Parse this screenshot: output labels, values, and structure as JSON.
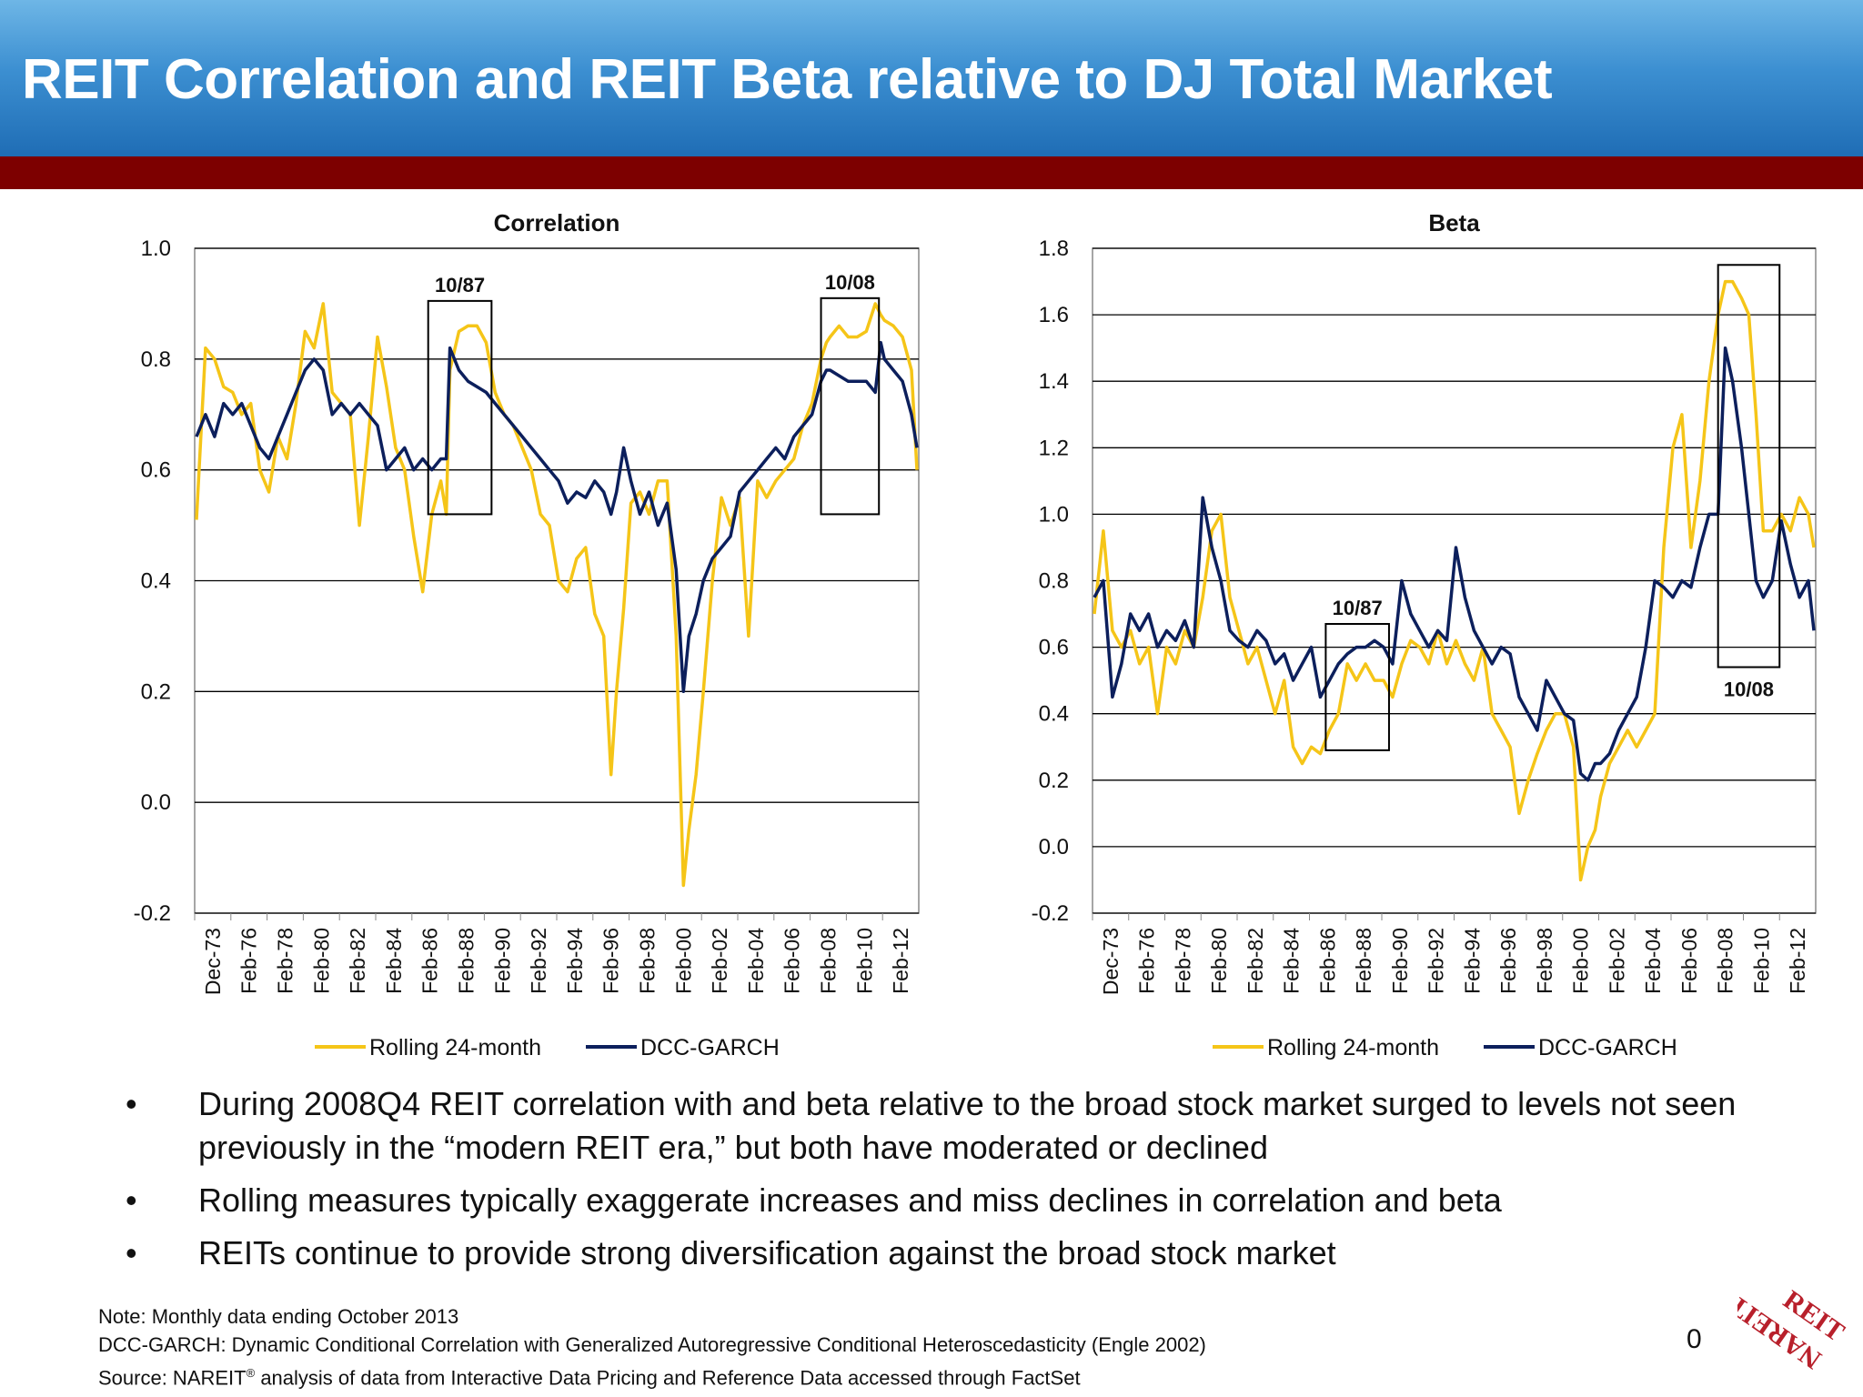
{
  "header": {
    "title": "REIT Correlation and REIT Beta relative to DJ Total Market"
  },
  "chart_data": [
    {
      "type": "line",
      "title": "Correlation",
      "ylim": [
        -0.2,
        1.0
      ],
      "yticks": [
        "1.0",
        "0.8",
        "0.6",
        "0.4",
        "0.2",
        "0.0",
        "-0.2"
      ],
      "x_tick_labels": [
        "Dec-73",
        "Feb-76",
        "Feb-78",
        "Feb-80",
        "Feb-82",
        "Feb-84",
        "Feb-86",
        "Feb-88",
        "Feb-90",
        "Feb-92",
        "Feb-94",
        "Feb-96",
        "Feb-98",
        "Feb-00",
        "Feb-02",
        "Feb-04",
        "Feb-06",
        "Feb-08",
        "Feb-10",
        "Feb-12"
      ],
      "grid": true,
      "legend_placement": "bottom",
      "series": [
        {
          "name": "Rolling 24-month",
          "color": "#f5c518",
          "x": [
            1974.0,
            1974.5,
            1975.0,
            1975.5,
            1976.0,
            1976.5,
            1977.0,
            1977.5,
            1978.0,
            1978.5,
            1979.0,
            1979.5,
            1980.0,
            1980.5,
            1981.0,
            1981.5,
            1982.0,
            1982.5,
            1983.0,
            1983.5,
            1984.0,
            1984.5,
            1985.0,
            1985.5,
            1986.0,
            1986.5,
            1987.0,
            1987.5,
            1987.8,
            1988.0,
            1988.5,
            1989.0,
            1989.5,
            1990.0,
            1990.5,
            1991.0,
            1991.5,
            1992.0,
            1992.5,
            1993.0,
            1993.5,
            1994.0,
            1994.5,
            1995.0,
            1995.5,
            1996.0,
            1996.5,
            1996.9,
            1997.2,
            1997.6,
            1998.0,
            1998.5,
            1999.0,
            1999.5,
            2000.0,
            2000.5,
            2000.9,
            2001.2,
            2001.6,
            2002.0,
            2002.5,
            2003.0,
            2003.5,
            2004.0,
            2004.5,
            2005.0,
            2005.5,
            2006.0,
            2006.5,
            2007.0,
            2007.5,
            2008.0,
            2008.5,
            2008.8,
            2009.0,
            2009.5,
            2010.0,
            2010.5,
            2011.0,
            2011.5,
            2011.8,
            2012.0,
            2012.5,
            2013.0,
            2013.5,
            2013.8
          ],
          "y": [
            0.51,
            0.82,
            0.8,
            0.75,
            0.74,
            0.7,
            0.72,
            0.6,
            0.56,
            0.66,
            0.62,
            0.72,
            0.85,
            0.82,
            0.9,
            0.74,
            0.72,
            0.7,
            0.5,
            0.66,
            0.84,
            0.75,
            0.64,
            0.6,
            0.48,
            0.38,
            0.52,
            0.58,
            0.52,
            0.78,
            0.85,
            0.86,
            0.86,
            0.83,
            0.74,
            0.7,
            0.68,
            0.64,
            0.6,
            0.52,
            0.5,
            0.4,
            0.38,
            0.44,
            0.46,
            0.34,
            0.3,
            0.05,
            0.2,
            0.35,
            0.54,
            0.56,
            0.52,
            0.58,
            0.58,
            0.3,
            -0.15,
            -0.05,
            0.05,
            0.2,
            0.4,
            0.55,
            0.5,
            0.55,
            0.3,
            0.58,
            0.55,
            0.58,
            0.6,
            0.62,
            0.68,
            0.72,
            0.8,
            0.83,
            0.84,
            0.86,
            0.84,
            0.84,
            0.85,
            0.9,
            0.88,
            0.87,
            0.86,
            0.84,
            0.78,
            0.6
          ]
        },
        {
          "name": "DCC-GARCH",
          "color": "#0c1f5c",
          "x": [
            1974.0,
            1974.5,
            1975.0,
            1975.5,
            1976.0,
            1976.5,
            1977.0,
            1977.5,
            1978.0,
            1978.5,
            1979.0,
            1979.5,
            1980.0,
            1980.5,
            1981.0,
            1981.5,
            1982.0,
            1982.5,
            1983.0,
            1983.5,
            1984.0,
            1984.5,
            1985.0,
            1985.5,
            1986.0,
            1986.5,
            1987.0,
            1987.5,
            1987.8,
            1988.0,
            1988.5,
            1989.0,
            1989.5,
            1990.0,
            1990.5,
            1991.0,
            1991.5,
            1992.0,
            1992.5,
            1993.0,
            1993.5,
            1994.0,
            1994.5,
            1995.0,
            1995.5,
            1996.0,
            1996.5,
            1996.9,
            1997.2,
            1997.6,
            1998.0,
            1998.5,
            1999.0,
            1999.5,
            2000.0,
            2000.5,
            2000.9,
            2001.2,
            2001.6,
            2002.0,
            2002.5,
            2003.0,
            2003.5,
            2004.0,
            2004.5,
            2005.0,
            2005.5,
            2006.0,
            2006.5,
            2007.0,
            2007.5,
            2008.0,
            2008.5,
            2008.8,
            2009.0,
            2009.5,
            2010.0,
            2010.5,
            2011.0,
            2011.5,
            2011.8,
            2012.0,
            2012.5,
            2013.0,
            2013.5,
            2013.8
          ],
          "y": [
            0.66,
            0.7,
            0.66,
            0.72,
            0.7,
            0.72,
            0.68,
            0.64,
            0.62,
            0.66,
            0.7,
            0.74,
            0.78,
            0.8,
            0.78,
            0.7,
            0.72,
            0.7,
            0.72,
            0.7,
            0.68,
            0.6,
            0.62,
            0.64,
            0.6,
            0.62,
            0.6,
            0.62,
            0.62,
            0.82,
            0.78,
            0.76,
            0.75,
            0.74,
            0.72,
            0.7,
            0.68,
            0.66,
            0.64,
            0.62,
            0.6,
            0.58,
            0.54,
            0.56,
            0.55,
            0.58,
            0.56,
            0.52,
            0.56,
            0.64,
            0.58,
            0.52,
            0.56,
            0.5,
            0.54,
            0.42,
            0.2,
            0.3,
            0.34,
            0.4,
            0.44,
            0.46,
            0.48,
            0.56,
            0.58,
            0.6,
            0.62,
            0.64,
            0.62,
            0.66,
            0.68,
            0.7,
            0.76,
            0.78,
            0.78,
            0.77,
            0.76,
            0.76,
            0.76,
            0.74,
            0.83,
            0.8,
            0.78,
            0.76,
            0.7,
            0.64
          ]
        }
      ],
      "annotations": [
        {
          "text": "10/87",
          "x0": 1986.8,
          "x1": 1990.3,
          "y0": 0.52,
          "y1": 0.905
        },
        {
          "text": "10/08",
          "x0": 2008.5,
          "x1": 2011.7,
          "y0": 0.52,
          "y1": 0.91
        }
      ]
    },
    {
      "type": "line",
      "title": "Beta",
      "ylim": [
        -0.2,
        1.8
      ],
      "yticks": [
        "1.8",
        "1.6",
        "1.4",
        "1.2",
        "1.0",
        "0.8",
        "0.6",
        "0.4",
        "0.2",
        "0.0",
        "-0.2"
      ],
      "x_tick_labels": [
        "Dec-73",
        "Feb-76",
        "Feb-78",
        "Feb-80",
        "Feb-82",
        "Feb-84",
        "Feb-86",
        "Feb-88",
        "Feb-90",
        "Feb-92",
        "Feb-94",
        "Feb-96",
        "Feb-98",
        "Feb-00",
        "Feb-02",
        "Feb-04",
        "Feb-06",
        "Feb-08",
        "Feb-10",
        "Feb-12"
      ],
      "grid": true,
      "legend_placement": "bottom",
      "series": [
        {
          "name": "Rolling 24-month",
          "color": "#f5c518",
          "x": [
            1974.0,
            1974.5,
            1975.0,
            1975.5,
            1976.0,
            1976.5,
            1977.0,
            1977.5,
            1978.0,
            1978.5,
            1979.0,
            1979.5,
            1980.0,
            1980.5,
            1981.0,
            1981.5,
            1982.0,
            1982.5,
            1983.0,
            1983.5,
            1984.0,
            1984.5,
            1985.0,
            1985.5,
            1986.0,
            1986.5,
            1987.0,
            1987.5,
            1988.0,
            1988.5,
            1989.0,
            1989.5,
            1990.0,
            1990.5,
            1991.0,
            1991.5,
            1992.0,
            1992.5,
            1993.0,
            1993.5,
            1994.0,
            1994.5,
            1995.0,
            1995.5,
            1996.0,
            1996.5,
            1997.0,
            1997.5,
            1998.0,
            1998.5,
            1999.0,
            1999.5,
            2000.0,
            2000.5,
            2000.9,
            2001.3,
            2001.7,
            2002.0,
            2002.5,
            2003.0,
            2003.5,
            2004.0,
            2004.5,
            2005.0,
            2005.5,
            2006.0,
            2006.5,
            2007.0,
            2007.5,
            2008.0,
            2008.5,
            2008.9,
            2009.3,
            2009.8,
            2010.2,
            2010.6,
            2011.0,
            2011.5,
            2012.0,
            2012.5,
            2013.0,
            2013.5,
            2013.8
          ],
          "y": [
            0.7,
            0.95,
            0.65,
            0.6,
            0.65,
            0.55,
            0.6,
            0.4,
            0.6,
            0.55,
            0.65,
            0.6,
            0.75,
            0.95,
            1.0,
            0.75,
            0.65,
            0.55,
            0.6,
            0.5,
            0.4,
            0.5,
            0.3,
            0.25,
            0.3,
            0.28,
            0.35,
            0.4,
            0.55,
            0.5,
            0.55,
            0.5,
            0.5,
            0.45,
            0.55,
            0.62,
            0.6,
            0.55,
            0.65,
            0.55,
            0.62,
            0.55,
            0.5,
            0.6,
            0.4,
            0.35,
            0.3,
            0.1,
            0.2,
            0.28,
            0.35,
            0.4,
            0.4,
            0.3,
            -0.1,
            0.0,
            0.05,
            0.15,
            0.25,
            0.3,
            0.35,
            0.3,
            0.35,
            0.4,
            0.9,
            1.2,
            1.3,
            0.9,
            1.1,
            1.4,
            1.6,
            1.7,
            1.7,
            1.65,
            1.6,
            1.3,
            0.95,
            0.95,
            1.0,
            0.95,
            1.05,
            1.0,
            0.9
          ]
        },
        {
          "name": "DCC-GARCH",
          "color": "#0c1f5c",
          "x": [
            1974.0,
            1974.5,
            1975.0,
            1975.5,
            1976.0,
            1976.5,
            1977.0,
            1977.5,
            1978.0,
            1978.5,
            1979.0,
            1979.5,
            1980.0,
            1980.5,
            1981.0,
            1981.5,
            1982.0,
            1982.5,
            1983.0,
            1983.5,
            1984.0,
            1984.5,
            1985.0,
            1985.5,
            1986.0,
            1986.5,
            1987.0,
            1987.5,
            1988.0,
            1988.5,
            1989.0,
            1989.5,
            1990.0,
            1990.5,
            1991.0,
            1991.5,
            1992.0,
            1992.5,
            1993.0,
            1993.5,
            1994.0,
            1994.5,
            1995.0,
            1995.5,
            1996.0,
            1996.5,
            1997.0,
            1997.5,
            1998.0,
            1998.5,
            1999.0,
            1999.5,
            2000.0,
            2000.5,
            2000.9,
            2001.3,
            2001.7,
            2002.0,
            2002.5,
            2003.0,
            2003.5,
            2004.0,
            2004.5,
            2005.0,
            2005.5,
            2006.0,
            2006.5,
            2007.0,
            2007.5,
            2008.0,
            2008.5,
            2008.9,
            2009.3,
            2009.8,
            2010.2,
            2010.6,
            2011.0,
            2011.5,
            2012.0,
            2012.5,
            2013.0,
            2013.5,
            2013.8
          ],
          "y": [
            0.75,
            0.8,
            0.45,
            0.55,
            0.7,
            0.65,
            0.7,
            0.6,
            0.65,
            0.62,
            0.68,
            0.6,
            1.05,
            0.9,
            0.8,
            0.65,
            0.62,
            0.6,
            0.65,
            0.62,
            0.55,
            0.58,
            0.5,
            0.55,
            0.6,
            0.45,
            0.5,
            0.55,
            0.58,
            0.6,
            0.6,
            0.62,
            0.6,
            0.55,
            0.8,
            0.7,
            0.65,
            0.6,
            0.65,
            0.62,
            0.9,
            0.75,
            0.65,
            0.6,
            0.55,
            0.6,
            0.58,
            0.45,
            0.4,
            0.35,
            0.5,
            0.45,
            0.4,
            0.38,
            0.22,
            0.2,
            0.25,
            0.25,
            0.28,
            0.35,
            0.4,
            0.45,
            0.6,
            0.8,
            0.78,
            0.75,
            0.8,
            0.78,
            0.9,
            1.0,
            1.0,
            1.5,
            1.4,
            1.2,
            1.0,
            0.8,
            0.75,
            0.8,
            0.98,
            0.85,
            0.75,
            0.8,
            0.65
          ]
        }
      ],
      "annotations": [
        {
          "text": "10/87",
          "x0": 1986.8,
          "x1": 1990.3,
          "y0": 0.29,
          "y1": 0.67
        },
        {
          "text": "10/08",
          "x0": 2008.5,
          "x1": 2011.9,
          "y0": 0.54,
          "y1": 1.75
        }
      ]
    }
  ],
  "bullets": [
    {
      "marker": "•",
      "text": "During 2008Q4 REIT correlation with and beta relative to the broad stock market surged to levels not seen previously in the “modern REIT era,” but both have moderated or declined"
    },
    {
      "marker": "•",
      "text": "Rolling measures typically exaggerate increases and miss declines in correlation and beta"
    },
    {
      "marker": "•",
      "text": "REITs continue to provide strong diversification against the broad stock market"
    }
  ],
  "notes": {
    "note": "Note: Monthly data ending  October 2013",
    "dcc": "DCC-GARCH: Dynamic Conditional Correlation with Generalized Autoregressive Conditional Heteroscedasticity (Engle 2002)",
    "source_prefix": "Source: NAREIT",
    "source_mark": "®",
    "source_suffix": " analysis of data from Interactive Data Pricing and Reference Data accessed through FactSet"
  },
  "page_number": "0",
  "logo": {
    "text": "NAREIT REIT",
    "color": "#b8202b"
  }
}
